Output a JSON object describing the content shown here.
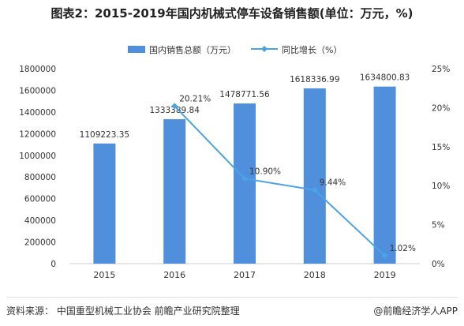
{
  "title": "图表2：2015-2019年国内机械式停车设备销售额(单位：万元，%)",
  "source": "资料来源：  中国重型机械工业协会 前瞻产业研究院整理",
  "brand": "@前瞻经济学人APP",
  "colors": {
    "bar": "#4f8fdb",
    "line": "#4aa3e6",
    "axis": "#cccccc",
    "text": "#333333"
  },
  "chart_data": {
    "type": "bar",
    "categories": [
      "2015",
      "2016",
      "2017",
      "2018",
      "2019"
    ],
    "series": [
      {
        "name": "国内销售总额（万元）",
        "type": "bar",
        "values": [
          1109223.35,
          1333389.84,
          1478771.56,
          1618336.99,
          1634800.83
        ],
        "labels": [
          "1109223.35",
          "1333389.84",
          "1478771.56",
          "1618336.99",
          "1634800.83"
        ]
      },
      {
        "name": "同比增长（%）",
        "type": "line",
        "axis": "right",
        "values": [
          null,
          20.21,
          10.9,
          9.44,
          1.02
        ],
        "labels": [
          "",
          "20.21%",
          "10.90%",
          "9.44%",
          "1.02%"
        ]
      }
    ],
    "ylim": [
      0,
      1800000
    ],
    "yticks": [
      "0",
      "200000",
      "400000",
      "600000",
      "800000",
      "1000000",
      "1200000",
      "1400000",
      "1600000",
      "1800000"
    ],
    "y2lim": [
      0,
      25
    ],
    "y2ticks": [
      "0%",
      "5%",
      "10%",
      "15%",
      "20%",
      "25%"
    ],
    "legend_position": "top"
  }
}
